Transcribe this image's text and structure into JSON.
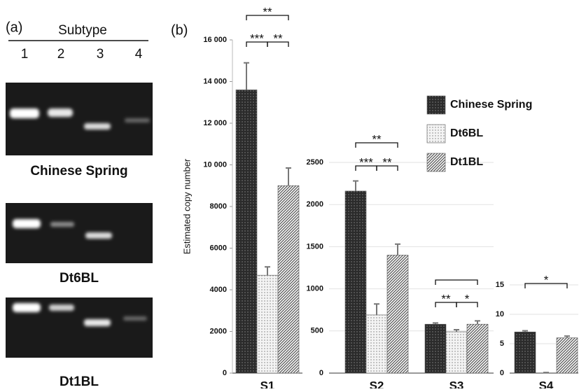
{
  "panel_a": {
    "label": "(a)",
    "header": "Subtype",
    "lanes": [
      "1",
      "2",
      "3",
      "4"
    ],
    "gels": [
      {
        "caption": "Chinese Spring"
      },
      {
        "caption": "Dt6BL"
      },
      {
        "caption": "Dt1BL"
      }
    ]
  },
  "panel_b": {
    "label": "(b)"
  },
  "chart_data": [
    {
      "type": "bar",
      "ylabel": "Estimated copy number",
      "categories": [
        "S1"
      ],
      "ylim": [
        0,
        16000
      ],
      "yticks": [
        0,
        2000,
        4000,
        6000,
        8000,
        {
          "value": 10000,
          "label": "10 000"
        },
        {
          "value": 12000,
          "label": "12 000"
        },
        {
          "value": 14000,
          "label": "14 000"
        },
        {
          "value": 16000,
          "label": "16 000"
        }
      ],
      "series": [
        {
          "color": "#2b2b2b",
          "pattern": "dots",
          "values": [
            13600
          ],
          "errors": [
            1300
          ]
        },
        {
          "color": "#f4f4f4",
          "pattern": "dots",
          "values": [
            4700
          ],
          "errors": [
            400
          ]
        },
        {
          "color": "#555555",
          "pattern": "hatch",
          "values": [
            9000
          ],
          "errors": [
            850
          ]
        }
      ],
      "annotations": [
        "**",
        "***",
        "**"
      ]
    },
    {
      "type": "bar",
      "categories": [
        "S2",
        "S3"
      ],
      "ylim": [
        0,
        2500
      ],
      "yticks": [
        0,
        500,
        1000,
        1500,
        2000,
        2500
      ],
      "grid": true,
      "series": [
        {
          "name": "Chinese Spring",
          "color": "#2b2b2b",
          "pattern": "dots",
          "values": [
            2160,
            580
          ],
          "errors": [
            120,
            15
          ]
        },
        {
          "name": "Dt6BL",
          "color": "#f4f4f4",
          "pattern": "dots",
          "values": [
            690,
            490
          ],
          "errors": [
            130,
            25
          ]
        },
        {
          "name": "Dt1BL",
          "color": "#555555",
          "pattern": "hatch",
          "values": [
            1400,
            580
          ],
          "errors": [
            130,
            40
          ]
        }
      ],
      "annotations": [
        "**",
        "***",
        "**",
        "**",
        "*"
      ]
    },
    {
      "type": "bar",
      "categories": [
        "S4"
      ],
      "ylim": [
        0,
        15
      ],
      "yticks": [
        0,
        5,
        10,
        15
      ],
      "grid": true,
      "series": [
        {
          "color": "#2b2b2b",
          "pattern": "dots",
          "values": [
            7
          ],
          "errors": [
            0.2
          ]
        },
        {
          "color": "#f4f4f4",
          "pattern": "dots",
          "values": [
            0
          ],
          "errors": [
            0.1
          ]
        },
        {
          "color": "#555555",
          "pattern": "hatch",
          "values": [
            6
          ],
          "errors": [
            0.3
          ]
        }
      ],
      "annotations": [
        "*"
      ]
    }
  ]
}
